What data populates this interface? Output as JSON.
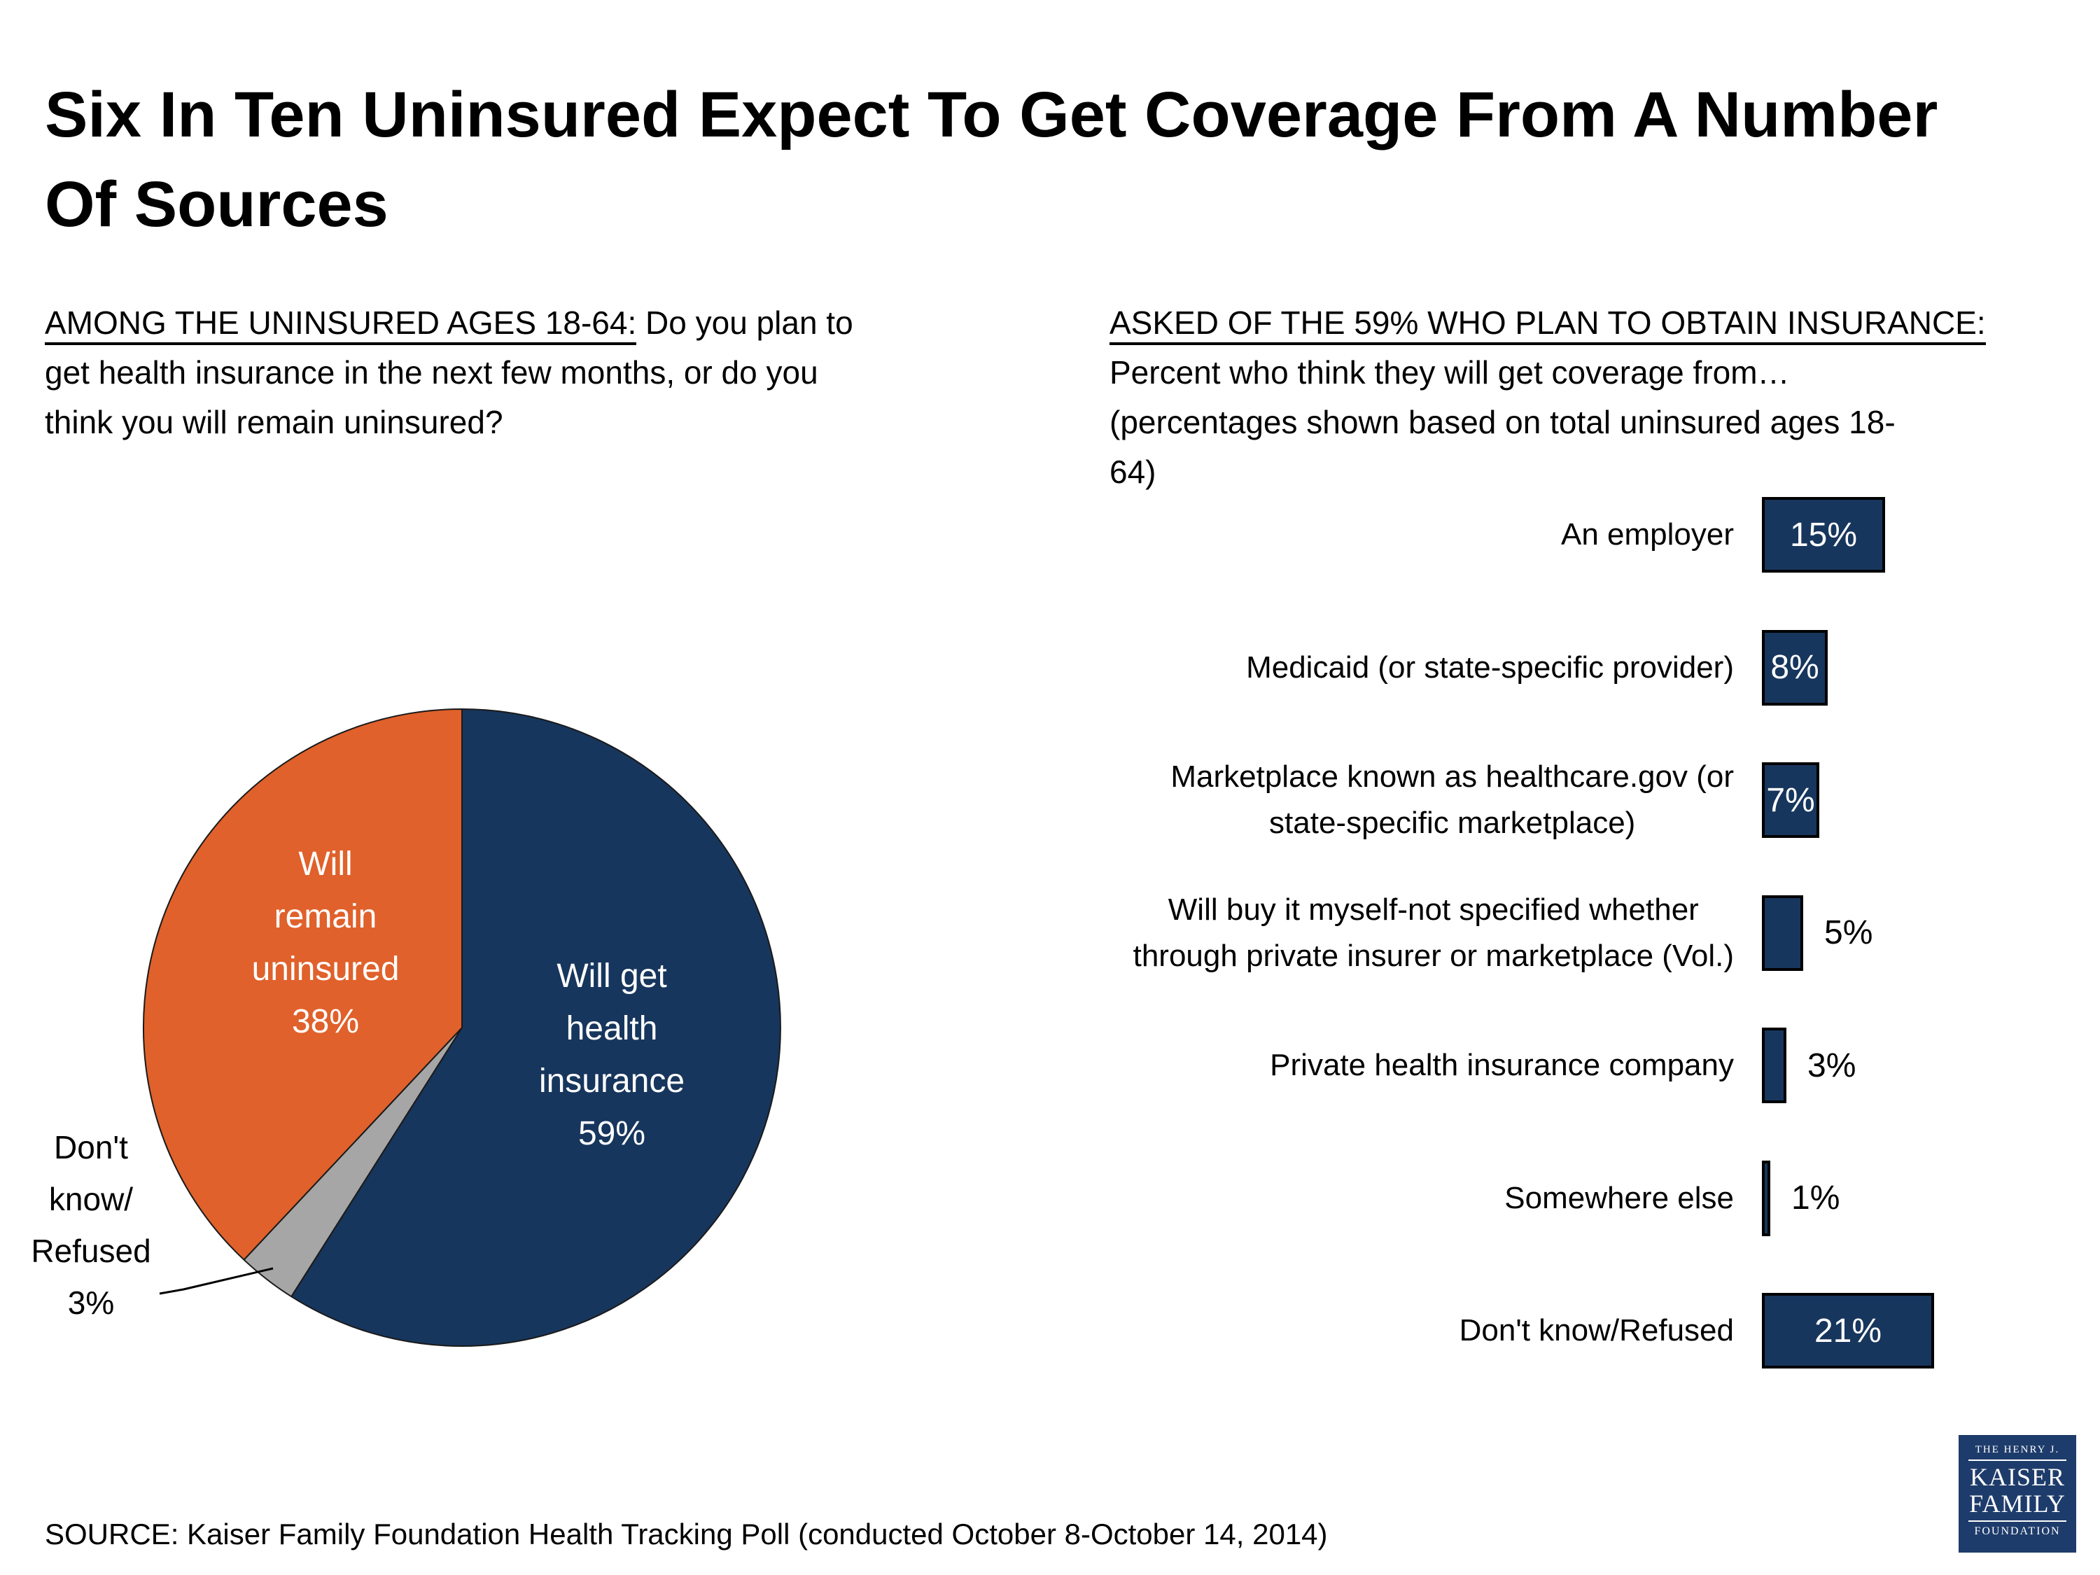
{
  "title": "Six In Ten Uninsured Expect To Get Coverage From A Number\nOf Sources",
  "left_question": {
    "lead": "AMONG THE UNINSURED AGES 18-64:",
    "rest": " Do you plan to\nget health insurance in the next few months, or do you\nthink you will remain uninsured?"
  },
  "right_question": {
    "lead": "ASKED OF THE 59% WHO PLAN TO OBTAIN INSURANCE:",
    "rest": "\nPercent who think they will get coverage from…\n(percentages shown based on total uninsured ages 18-\n64)"
  },
  "source": "SOURCE: Kaiser Family Foundation Health Tracking Poll (conducted October 8-October 14, 2014)",
  "logo": {
    "line1": "THE HENRY J.",
    "line2": "KAISER",
    "line3": "FAMILY",
    "line4": "FOUNDATION"
  },
  "colors": {
    "navy": "#17365D",
    "orange": "#E0612B",
    "gray": "#A6A6A6",
    "logo_navy": "#1E3C6B",
    "slice_outline": "#1a1a1a"
  },
  "chart_data": [
    {
      "type": "pie",
      "question": "AMONG THE UNINSURED AGES 18-64: Do you plan to get health insurance in the next few months, or do you think you will remain uninsured?",
      "start_angle_deg": 0,
      "direction": "clockwise",
      "slices": [
        {
          "label": "Will get health insurance",
          "value": 59,
          "color_key": "navy",
          "label_lines": [
            "Will get",
            "health",
            "insurance",
            "59%"
          ]
        },
        {
          "label": "Don't know/Refused",
          "value": 3,
          "color_key": "gray",
          "label_lines": [
            "Don't",
            "know/",
            "Refused",
            "3%"
          ]
        },
        {
          "label": "Will remain uninsured",
          "value": 38,
          "color_key": "orange",
          "label_lines": [
            "Will",
            "remain",
            "uninsured",
            "38%"
          ]
        }
      ]
    },
    {
      "type": "bar",
      "orientation": "horizontal",
      "question": "ASKED OF THE 59% WHO PLAN TO OBTAIN INSURANCE: Percent who think they will get coverage from… (percentages shown based on total uninsured ages 18-64)",
      "categories": [
        "An employer",
        "Medicaid (or state-specific provider)",
        "Marketplace known as healthcare.gov (or state-specific marketplace)",
        "Will buy it myself-not specified whether through private insurer or marketplace (Vol.)",
        "Private health insurance company",
        "Somewhere else",
        "Don't know/Refused"
      ],
      "category_lines": [
        [
          "An employer"
        ],
        [
          "Medicaid (or state-specific provider)"
        ],
        [
          "Marketplace known as healthcare.gov (or",
          "state-specific marketplace)"
        ],
        [
          "Will buy it myself-not specified whether",
          "through private insurer or marketplace (Vol.)"
        ],
        [
          "Private health insurance company"
        ],
        [
          "Somewhere else"
        ],
        [
          "Don't know/Refused"
        ]
      ],
      "values": [
        15,
        8,
        7,
        5,
        3,
        1,
        21
      ],
      "value_labels": [
        "15%",
        "8%",
        "7%",
        "5%",
        "3%",
        "1%",
        "21%"
      ],
      "xlim": [
        0,
        25
      ],
      "grid": false,
      "legend": false
    }
  ]
}
